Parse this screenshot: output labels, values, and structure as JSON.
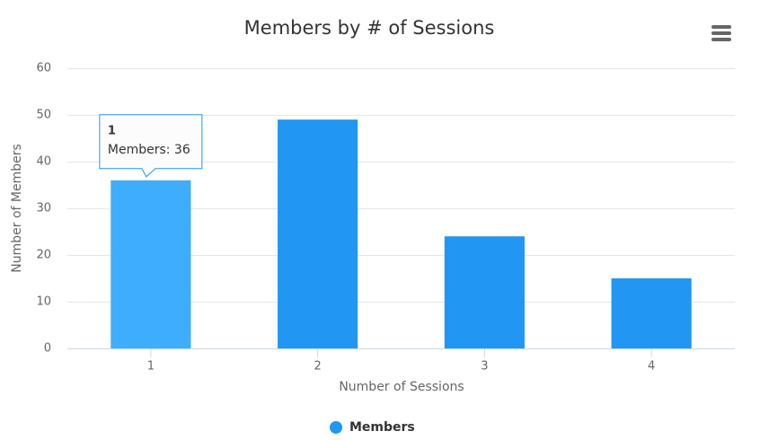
{
  "chart_data": {
    "type": "bar",
    "title": "Members by # of Sessions",
    "x_label": "Number of Sessions",
    "y_label": "Number of Members",
    "categories": [
      "1",
      "2",
      "3",
      "4"
    ],
    "series": [
      {
        "name": "Members",
        "color": "#2196f3",
        "values": [
          36,
          49,
          24,
          15
        ]
      }
    ],
    "ylim": [
      0,
      60
    ],
    "yticks": [
      0,
      10,
      20,
      30,
      40,
      50,
      60
    ],
    "grid": true,
    "legend": "bottom",
    "hover_color": "#3eadfc",
    "tooltip": {
      "title": "1",
      "text": "Members: 36"
    }
  }
}
